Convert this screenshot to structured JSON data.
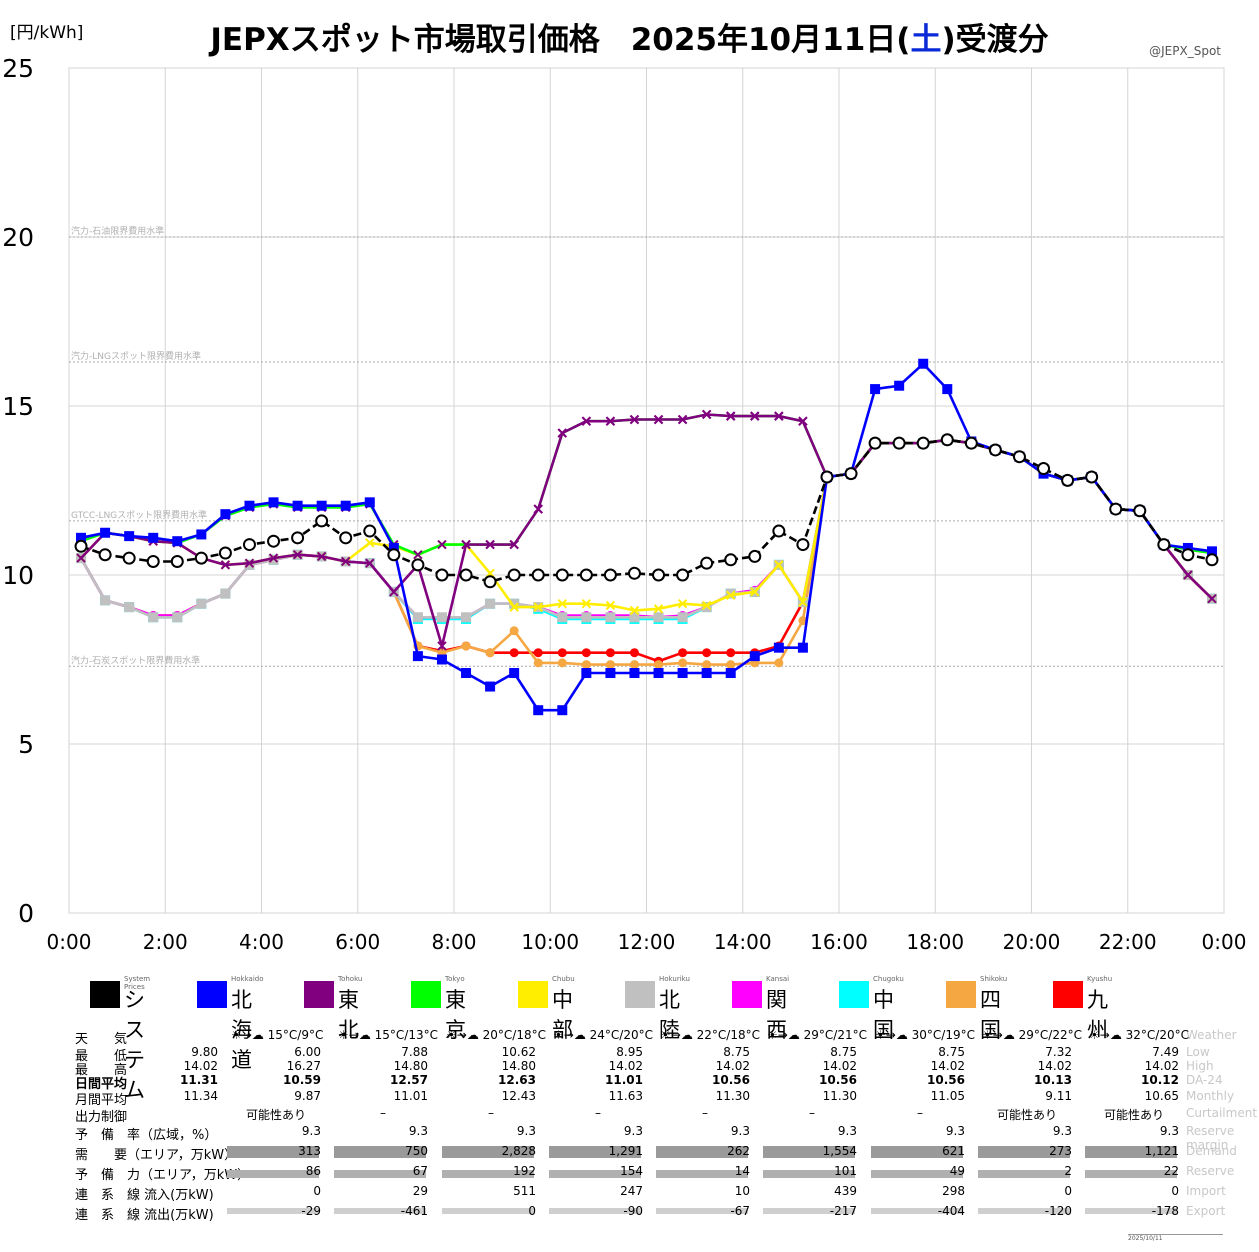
{
  "header": {
    "title_main": "JEPXスポット市場取引価格　2025年10月11日(",
    "title_day": "土",
    "title_end": ")受渡分",
    "unit": "[円/kWh]",
    "credit": "@JEPX_Spot"
  },
  "chart_data": {
    "type": "line",
    "ylim": [
      0,
      25
    ],
    "yticks": [
      "0",
      "5",
      "10",
      "15",
      "20",
      "25"
    ],
    "xticks": [
      "0:00",
      "2:00",
      "4:00",
      "6:00",
      "8:00",
      "10:00",
      "12:00",
      "14:00",
      "16:00",
      "18:00",
      "20:00",
      "22:00",
      "0:00"
    ],
    "grid": true,
    "reference_lines": [
      {
        "label": "汽力-石油限界費用水準",
        "value": 20.0
      },
      {
        "label": "汽力-LNGスポット限界費用水準",
        "value": 16.3
      },
      {
        "label": "GTCC-LNGスポット限界費用水準",
        "value": 11.6
      },
      {
        "label": "汽力-石炭スポット限界費用水準",
        "value": 7.3
      }
    ],
    "series": [
      {
        "name": "システム",
        "name_en": "System Prices",
        "color": "#000000",
        "marker": "open-circle",
        "dashed": true,
        "values": [
          10.85,
          10.6,
          10.5,
          10.4,
          10.4,
          10.5,
          10.65,
          10.9,
          11.0,
          11.1,
          11.6,
          11.1,
          11.3,
          10.6,
          10.3,
          10.0,
          10.0,
          9.8,
          10.0,
          10.0,
          10.0,
          10.0,
          10.0,
          10.05,
          10.0,
          10.0,
          10.35,
          10.45,
          10.55,
          11.3,
          10.9,
          12.9,
          13.0,
          13.9,
          13.9,
          13.9,
          14.0,
          13.9,
          13.7,
          13.5,
          13.15,
          12.8,
          12.9,
          11.95,
          11.9,
          10.9,
          10.6,
          10.45
        ]
      },
      {
        "name": "北海道",
        "name_en": "Hokkaido",
        "color": "#0000ff",
        "marker": "square",
        "values": [
          11.1,
          11.25,
          11.15,
          11.1,
          11.0,
          11.2,
          11.8,
          12.05,
          12.15,
          12.05,
          12.05,
          12.05,
          12.15,
          10.8,
          7.6,
          7.5,
          7.1,
          6.7,
          7.1,
          6.0,
          6.0,
          7.1,
          7.1,
          7.1,
          7.1,
          7.1,
          7.1,
          7.1,
          7.6,
          7.85,
          7.85,
          12.9,
          13.0,
          15.5,
          15.6,
          16.25,
          15.5,
          13.95,
          13.7,
          13.5,
          13.0,
          12.8,
          12.9,
          11.95,
          11.9,
          10.9,
          10.8,
          10.7
        ]
      },
      {
        "name": "東北",
        "name_en": "Tohoku",
        "color": "#800080",
        "marker": "x",
        "values": [
          10.5,
          11.25,
          11.15,
          11.0,
          10.95,
          10.5,
          10.3,
          10.35,
          10.5,
          10.6,
          10.55,
          10.4,
          10.35,
          9.5,
          10.3,
          7.9,
          10.9,
          10.9,
          10.9,
          11.95,
          14.2,
          14.55,
          14.55,
          14.6,
          14.6,
          14.6,
          14.75,
          14.7,
          14.7,
          14.7,
          14.55,
          12.9,
          13.0,
          13.9,
          13.9,
          13.9,
          14.0,
          13.9,
          13.7,
          13.5,
          13.0,
          12.8,
          12.9,
          11.95,
          11.9,
          10.9,
          10.0,
          9.3
        ]
      },
      {
        "name": "東京",
        "name_en": "Tokyo",
        "color": "#00ff00",
        "marker": "x",
        "values": [
          11.0,
          11.25,
          11.15,
          11.0,
          10.95,
          11.2,
          11.75,
          12.0,
          12.1,
          12.0,
          12.0,
          12.0,
          12.1,
          10.9,
          10.6,
          10.9,
          10.9,
          10.9,
          10.9,
          11.95,
          14.2,
          14.55,
          14.55,
          14.6,
          14.6,
          14.6,
          14.75,
          14.7,
          14.7,
          14.7,
          14.55,
          12.9,
          13.0,
          13.9,
          13.9,
          13.9,
          14.0,
          13.9,
          13.7,
          13.5,
          13.0,
          12.8,
          12.9,
          11.95,
          11.9,
          10.9,
          10.75,
          10.65
        ]
      },
      {
        "name": "中部",
        "name_en": "Chubu",
        "color": "#ffee00",
        "marker": "x",
        "values": [
          10.5,
          11.25,
          11.15,
          11.0,
          10.95,
          10.5,
          10.3,
          10.35,
          10.5,
          10.6,
          10.55,
          10.4,
          10.95,
          10.85,
          10.6,
          10.9,
          10.9,
          10.05,
          9.05,
          9.05,
          9.15,
          9.15,
          9.1,
          8.95,
          9.0,
          9.15,
          9.1,
          9.4,
          9.5,
          10.3,
          9.2,
          12.9,
          13.0,
          13.9,
          13.9,
          13.9,
          14.0,
          13.9,
          13.7,
          13.5,
          13.0,
          12.8,
          12.9,
          11.95,
          11.9,
          10.9,
          10.0,
          9.3
        ]
      },
      {
        "name": "北陸",
        "name_en": "Hokuriku",
        "color": "#c0c0c0",
        "marker": "square",
        "values": [
          10.5,
          9.25,
          9.05,
          8.75,
          8.75,
          9.15,
          9.45,
          10.3,
          10.45,
          10.6,
          10.55,
          10.4,
          10.35,
          9.5,
          8.75,
          8.75,
          8.75,
          9.15,
          9.15,
          9.05,
          8.75,
          8.75,
          8.75,
          8.75,
          8.75,
          8.75,
          9.05,
          9.45,
          9.5,
          10.3,
          9.2,
          12.9,
          13.0,
          13.9,
          13.9,
          13.9,
          14.0,
          13.9,
          13.7,
          13.5,
          13.0,
          12.8,
          12.9,
          11.95,
          11.9,
          10.9,
          10.0,
          9.3
        ]
      },
      {
        "name": "関西",
        "name_en": "Kansai",
        "color": "#ff00ff",
        "marker": "circle",
        "values": [
          10.5,
          9.25,
          9.05,
          8.8,
          8.8,
          9.15,
          9.45,
          10.3,
          10.45,
          10.6,
          10.55,
          10.4,
          10.35,
          9.5,
          8.75,
          8.75,
          8.75,
          9.15,
          9.15,
          9.05,
          8.8,
          8.8,
          8.8,
          8.8,
          8.75,
          8.8,
          9.05,
          9.45,
          9.55,
          10.3,
          9.2,
          12.9,
          13.0,
          13.9,
          13.9,
          13.9,
          14.0,
          13.9,
          13.7,
          13.5,
          13.0,
          12.8,
          12.9,
          11.95,
          11.9,
          10.9,
          10.0,
          9.3
        ]
      },
      {
        "name": "中国",
        "name_en": "Chugoku",
        "color": "#00ffff",
        "marker": "square",
        "values": [
          10.5,
          9.25,
          9.05,
          8.75,
          8.75,
          9.15,
          9.45,
          10.3,
          10.45,
          10.6,
          10.55,
          10.4,
          10.35,
          9.5,
          8.7,
          8.7,
          8.7,
          9.15,
          9.15,
          9.0,
          8.7,
          8.7,
          8.7,
          8.7,
          8.7,
          8.7,
          9.05,
          9.45,
          9.5,
          10.3,
          9.2,
          12.9,
          13.0,
          13.9,
          13.9,
          13.9,
          14.0,
          13.9,
          13.7,
          13.5,
          13.0,
          12.8,
          12.9,
          11.95,
          11.9,
          10.9,
          10.0,
          9.3
        ]
      },
      {
        "name": "四国",
        "name_en": "Shikoku",
        "color": "#f5a742",
        "marker": "circle",
        "values": [
          10.5,
          9.25,
          9.05,
          8.8,
          8.8,
          9.15,
          9.45,
          10.3,
          10.45,
          10.6,
          10.55,
          10.4,
          10.35,
          9.5,
          7.9,
          7.7,
          7.9,
          7.7,
          8.35,
          7.4,
          7.4,
          7.35,
          7.35,
          7.35,
          7.35,
          7.4,
          7.35,
          7.35,
          7.4,
          7.4,
          8.65,
          12.9,
          13.0,
          13.9,
          13.9,
          13.9,
          14.0,
          13.9,
          13.7,
          13.5,
          13.0,
          12.8,
          12.9,
          11.95,
          11.9,
          10.9,
          10.0,
          9.3
        ]
      },
      {
        "name": "九州",
        "name_en": "Kyushu",
        "color": "#ff0000",
        "marker": "circle",
        "values": [
          10.5,
          9.25,
          9.05,
          8.8,
          8.8,
          9.15,
          9.45,
          10.3,
          10.45,
          10.6,
          10.55,
          10.4,
          10.35,
          9.5,
          7.9,
          7.75,
          7.9,
          7.7,
          7.7,
          7.7,
          7.7,
          7.7,
          7.7,
          7.7,
          7.45,
          7.7,
          7.7,
          7.7,
          7.7,
          7.9,
          9.2,
          12.9,
          13.0,
          13.9,
          13.9,
          13.9,
          14.0,
          13.9,
          13.7,
          13.5,
          13.0,
          12.8,
          12.9,
          11.95,
          11.9,
          10.9,
          10.0,
          9.3
        ]
      }
    ]
  },
  "table": {
    "row_labels": [
      "天　　気",
      "最　　低",
      "最　　高",
      "日間平均",
      "月間平均",
      "出力制御",
      "予　備　率（広域，%）",
      "需　　要（エリア，万kW）",
      "予　備　力（エリア，万kW）",
      "連　系　線 流入(万kW)",
      "連　系　線 流出(万kW)"
    ],
    "row_labels_en": [
      "Weather",
      "Low",
      "High",
      "DA-24",
      "Monthly",
      "Curtailment",
      "Reserve margin",
      "Demand",
      "Reserve",
      "Import",
      "Export"
    ],
    "columns": [
      {
        "weather": "15°C/9°C",
        "low": "6.00",
        "high": "16.27",
        "avg": "10.59",
        "monthly": "9.87",
        "curtail": "可能性あり",
        "reserve_rate": "9.3",
        "demand": "313",
        "reserve": "86",
        "import": "0",
        "export": "-29"
      },
      {
        "weather": "15°C/13°C",
        "low": "7.88",
        "high": "14.80",
        "avg": "12.57",
        "monthly": "11.01",
        "curtail": "–",
        "reserve_rate": "9.3",
        "demand": "750",
        "reserve": "67",
        "import": "29",
        "export": "-461"
      },
      {
        "weather": "20°C/18°C",
        "low": "10.62",
        "high": "14.80",
        "avg": "12.63",
        "monthly": "12.43",
        "curtail": "–",
        "reserve_rate": "9.3",
        "demand": "2,828",
        "reserve": "192",
        "import": "511",
        "export": "0"
      },
      {
        "weather": "24°C/20°C",
        "low": "8.95",
        "high": "14.02",
        "avg": "11.01",
        "monthly": "11.63",
        "curtail": "–",
        "reserve_rate": "9.3",
        "demand": "1,291",
        "reserve": "154",
        "import": "247",
        "export": "-90"
      },
      {
        "weather": "22°C/18°C",
        "low": "8.75",
        "high": "14.02",
        "avg": "10.56",
        "monthly": "11.30",
        "curtail": "–",
        "reserve_rate": "9.3",
        "demand": "262",
        "reserve": "14",
        "import": "10",
        "export": "-67"
      },
      {
        "weather": "29°C/21°C",
        "low": "8.75",
        "high": "14.02",
        "avg": "10.56",
        "monthly": "11.30",
        "curtail": "–",
        "reserve_rate": "9.3",
        "demand": "1,554",
        "reserve": "101",
        "import": "439",
        "export": "-217"
      },
      {
        "weather": "30°C/19°C",
        "low": "8.75",
        "high": "14.02",
        "avg": "10.56",
        "monthly": "11.05",
        "curtail": "–",
        "reserve_rate": "9.3",
        "demand": "621",
        "reserve": "49",
        "import": "298",
        "export": "-404"
      },
      {
        "weather": "29°C/22°C",
        "low": "7.32",
        "high": "14.02",
        "avg": "10.13",
        "monthly": "9.11",
        "curtail": "可能性あり",
        "reserve_rate": "9.3",
        "demand": "273",
        "reserve": "2",
        "import": "0",
        "export": "-120"
      },
      {
        "weather": "32°C/20°C",
        "low": "7.49",
        "high": "14.02",
        "avg": "10.12",
        "monthly": "10.65",
        "curtail": "可能性あり",
        "reserve_rate": "9.3",
        "demand": "1,121",
        "reserve": "22",
        "import": "0",
        "export": "-178"
      }
    ],
    "system_low": "9.80",
    "system_high": "14.02",
    "system_avg": "11.31",
    "system_monthly": "11.34"
  },
  "stamp": "2025/10/11"
}
